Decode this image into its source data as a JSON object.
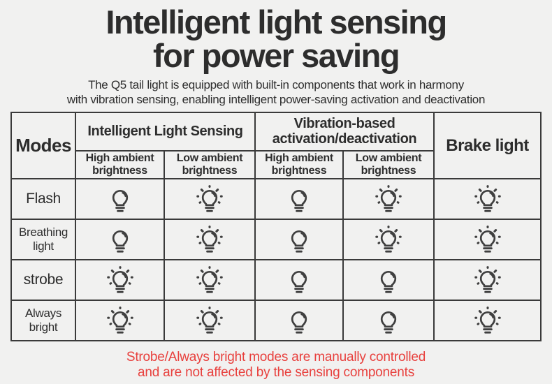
{
  "colors": {
    "background": "#f1f1f0",
    "text_dark": "#2d2d2d",
    "border": "#3a3a3a",
    "icon": "#3f3f3f",
    "note_red": "#e8403d"
  },
  "header": {
    "title_lines": [
      "Intelligent light sensing",
      "for power saving"
    ],
    "subtitle_lines": [
      "The Q5 tail light is equipped with built-in components that work in harmony",
      "with vibration sensing, enabling intelligent power-saving activation and deactivation"
    ]
  },
  "table": {
    "corner_label": "Modes",
    "column_groups": [
      {
        "label": "Intelligent Light Sensing",
        "subcolumns": [
          "High ambient brightness",
          "Low ambient brightness"
        ]
      },
      {
        "label": "Vibration-based activation/deactivation",
        "subcolumns": [
          "High ambient brightness",
          "Low ambient brightness"
        ]
      }
    ],
    "brake_label": "Brake light",
    "rows": [
      {
        "mode": "Flash",
        "cells": [
          "off",
          "on",
          "off",
          "on",
          "on"
        ]
      },
      {
        "mode": "Breathing light",
        "cells": [
          "off",
          "on",
          "off",
          "on",
          "on"
        ]
      },
      {
        "mode": "strobe",
        "cells": [
          "on",
          "on",
          "off",
          "off",
          "on"
        ]
      },
      {
        "mode": "Always bright",
        "cells": [
          "on",
          "on",
          "off",
          "off",
          "on"
        ]
      }
    ]
  },
  "footer": {
    "note_lines": [
      "Strobe/Always bright modes are manually controlled",
      "and are not affected by the sensing components"
    ]
  }
}
